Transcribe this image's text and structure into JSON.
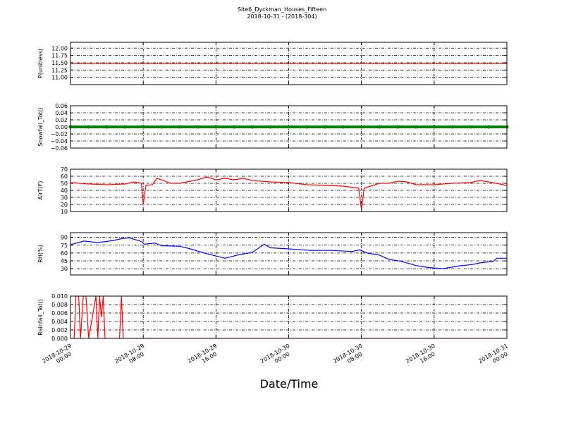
{
  "chart_data": [
    {
      "type": "line",
      "title": "Site6_Dyckman_Houses_Fifteen",
      "subtitle": "2018-10-31 - (2018-304)",
      "ylabel": "P(unitless)",
      "ylim": [
        10.75,
        12.2
      ],
      "yticks": [
        {
          "value": 11,
          "label": "11.00"
        },
        {
          "value": 11.25,
          "label": "11.25"
        },
        {
          "value": 11.5,
          "label": "11.50"
        },
        {
          "value": 11.75,
          "label": "11.75"
        },
        {
          "value": 12,
          "label": "12.00"
        }
      ],
      "grid": true,
      "series": [
        {
          "name": "P",
          "color": "#ff0000",
          "x": [
            "2018-10-29 00:00",
            "2018-10-31 00:00"
          ],
          "values": [
            11.47,
            11.47
          ]
        }
      ]
    },
    {
      "type": "line",
      "ylabel": "Snowfall_Tot()",
      "markers": true,
      "ylim": [
        -0.06,
        0.06
      ],
      "yticks": [
        {
          "value": -0.06,
          "label": "−0.06"
        },
        {
          "value": -0.04,
          "label": "−0.04"
        },
        {
          "value": -0.02,
          "label": "−0.02"
        },
        {
          "value": 0,
          "label": "0.00"
        },
        {
          "value": 0.02,
          "label": "0.02"
        },
        {
          "value": 0.04,
          "label": "0.04"
        },
        {
          "value": 0.06,
          "label": "0.06"
        }
      ],
      "grid": true,
      "series": [
        {
          "name": "Snowfall_Tot",
          "color": "#008000",
          "x": [
            "2018-10-29 00:00",
            "2018-10-29 02:00",
            "2018-10-29 04:00",
            "2018-10-29 06:00",
            "2018-10-29 08:00",
            "2018-10-29 10:00",
            "2018-10-29 12:00",
            "2018-10-29 14:00",
            "2018-10-29 16:00",
            "2018-10-29 18:00",
            "2018-10-29 20:00",
            "2018-10-29 22:00",
            "2018-10-30 00:00",
            "2018-10-30 02:00",
            "2018-10-30 04:00",
            "2018-10-30 06:00",
            "2018-10-30 08:00",
            "2018-10-30 10:00",
            "2018-10-30 12:00",
            "2018-10-30 14:00",
            "2018-10-30 16:00",
            "2018-10-30 18:00",
            "2018-10-30 20:00",
            "2018-10-30 22:00",
            "2018-10-31 00:00"
          ],
          "values": [
            0,
            0,
            0,
            0,
            0,
            0,
            0,
            0,
            0,
            0,
            0,
            0,
            0,
            0,
            0,
            0,
            0,
            0,
            0,
            0,
            0,
            0,
            0,
            0,
            0
          ]
        }
      ]
    },
    {
      "type": "line",
      "ylabel": "AirT(F)",
      "ylim": [
        10,
        70
      ],
      "yticks": [
        10,
        20,
        30,
        40,
        50,
        60,
        70
      ],
      "grid": true,
      "series": [
        {
          "name": "AirT",
          "color": "#ff0000",
          "x": [
            "2018-10-29 00:00",
            "2018-10-29 02:00",
            "2018-10-29 04:00",
            "2018-10-29 06:00",
            "2018-10-29 07:00",
            "2018-10-29 07:48",
            "2018-10-29 08:00",
            "2018-10-29 08:18",
            "2018-10-29 09:00",
            "2018-10-29 09:30",
            "2018-10-29 10:00",
            "2018-10-29 11:00",
            "2018-10-29 12:00",
            "2018-10-29 14:00",
            "2018-10-29 15:00",
            "2018-10-29 16:00",
            "2018-10-29 17:00",
            "2018-10-29 18:00",
            "2018-10-29 19:00",
            "2018-10-29 20:00",
            "2018-10-29 22:00",
            "2018-10-30 00:00",
            "2018-10-30 02:00",
            "2018-10-30 04:00",
            "2018-10-30 06:00",
            "2018-10-30 07:42",
            "2018-10-30 08:00",
            "2018-10-30 08:18",
            "2018-10-30 09:00",
            "2018-10-30 10:00",
            "2018-10-30 11:00",
            "2018-10-30 12:00",
            "2018-10-30 13:00",
            "2018-10-30 14:00",
            "2018-10-30 16:00",
            "2018-10-30 18:00",
            "2018-10-30 20:00",
            "2018-10-30 21:00",
            "2018-10-30 22:00",
            "2018-10-31 00:00"
          ],
          "values": [
            51,
            49,
            48,
            49,
            52,
            50,
            20,
            47,
            48,
            57,
            55,
            50,
            50,
            55,
            59,
            55,
            57,
            55,
            57,
            54,
            52,
            51,
            48,
            47,
            46,
            43,
            13,
            43,
            46,
            50,
            50,
            53,
            52,
            48,
            48,
            50,
            51,
            54,
            52,
            47
          ]
        }
      ]
    },
    {
      "type": "line",
      "ylabel": "RH(%)",
      "ylim": [
        18,
        99
      ],
      "yticks": [
        30,
        45,
        60,
        75,
        90
      ],
      "grid": true,
      "series": [
        {
          "name": "RH",
          "color": "#0000ff",
          "x": [
            "2018-10-29 00:00",
            "2018-10-29 01:30",
            "2018-10-29 03:00",
            "2018-10-29 04:42",
            "2018-10-29 05:48",
            "2018-10-29 06:30",
            "2018-10-29 07:48",
            "2018-10-29 08:06",
            "2018-10-29 09:18",
            "2018-10-29 10:00",
            "2018-10-29 12:00",
            "2018-10-29 13:12",
            "2018-10-29 14:42",
            "2018-10-29 17:00",
            "2018-10-29 18:36",
            "2018-10-29 20:00",
            "2018-10-29 21:18",
            "2018-10-29 22:00",
            "2018-10-30 00:00",
            "2018-10-30 02:24",
            "2018-10-30 04:42",
            "2018-10-30 07:00",
            "2018-10-30 07:48",
            "2018-10-30 08:36",
            "2018-10-30 10:00",
            "2018-10-30 11:00",
            "2018-10-30 12:24",
            "2018-10-30 14:00",
            "2018-10-30 15:30",
            "2018-10-30 17:00",
            "2018-10-30 18:36",
            "2018-10-30 20:12",
            "2018-10-30 21:00",
            "2018-10-30 22:30",
            "2018-10-30 22:54",
            "2018-10-31 00:00"
          ],
          "values": [
            76,
            83,
            80,
            84,
            88,
            89,
            82,
            77,
            79,
            74,
            73,
            68,
            60,
            50,
            57,
            61,
            77,
            70,
            68,
            65,
            65,
            63,
            66,
            60,
            56,
            48,
            44,
            36,
            32,
            30,
            35,
            38,
            41,
            44,
            50,
            50
          ]
        }
      ]
    },
    {
      "type": "line",
      "ylabel": "Rainfall_Tot()",
      "xlabel": "Date/Time",
      "ylim": [
        0,
        0.01
      ],
      "yticks": [
        {
          "value": 0,
          "label": "0.000"
        },
        {
          "value": 0.002,
          "label": "0.002"
        },
        {
          "value": 0.004,
          "label": "0.004"
        },
        {
          "value": 0.006,
          "label": "0.006"
        },
        {
          "value": 0.008,
          "label": "0.008"
        },
        {
          "value": 0.01,
          "label": "0.010"
        }
      ],
      "xlim": [
        "2018-10-29 00:00",
        "2018-10-31 00:00"
      ],
      "xticks": [
        "2018-10-29 00:00",
        "2018-10-29 08:00",
        "2018-10-29 16:00",
        "2018-10-30 00:00",
        "2018-10-30 08:00",
        "2018-10-30 16:00",
        "2018-10-31 00:00"
      ],
      "grid": true,
      "series": [
        {
          "name": "Rainfall_Tot",
          "color": "#ff0000",
          "x": [
            "2018-10-29 00:00",
            "2018-10-29 00:24",
            "2018-10-29 00:36",
            "2018-10-29 00:54",
            "2018-10-29 01:06",
            "2018-10-29 01:24",
            "2018-10-29 01:42",
            "2018-10-29 02:00",
            "2018-10-29 02:48",
            "2018-10-29 03:00",
            "2018-10-29 03:12",
            "2018-10-29 03:24",
            "2018-10-29 03:36",
            "2018-10-29 03:48",
            "2018-10-29 05:24",
            "2018-10-29 05:36",
            "2018-10-29 05:48",
            "2018-10-31 00:00"
          ],
          "values": [
            0,
            0,
            0.01,
            0.01,
            0,
            0.01,
            0.01,
            0,
            0.01,
            0,
            0.01,
            0.005,
            0.01,
            0,
            0,
            0.01,
            0,
            0
          ]
        }
      ]
    }
  ]
}
